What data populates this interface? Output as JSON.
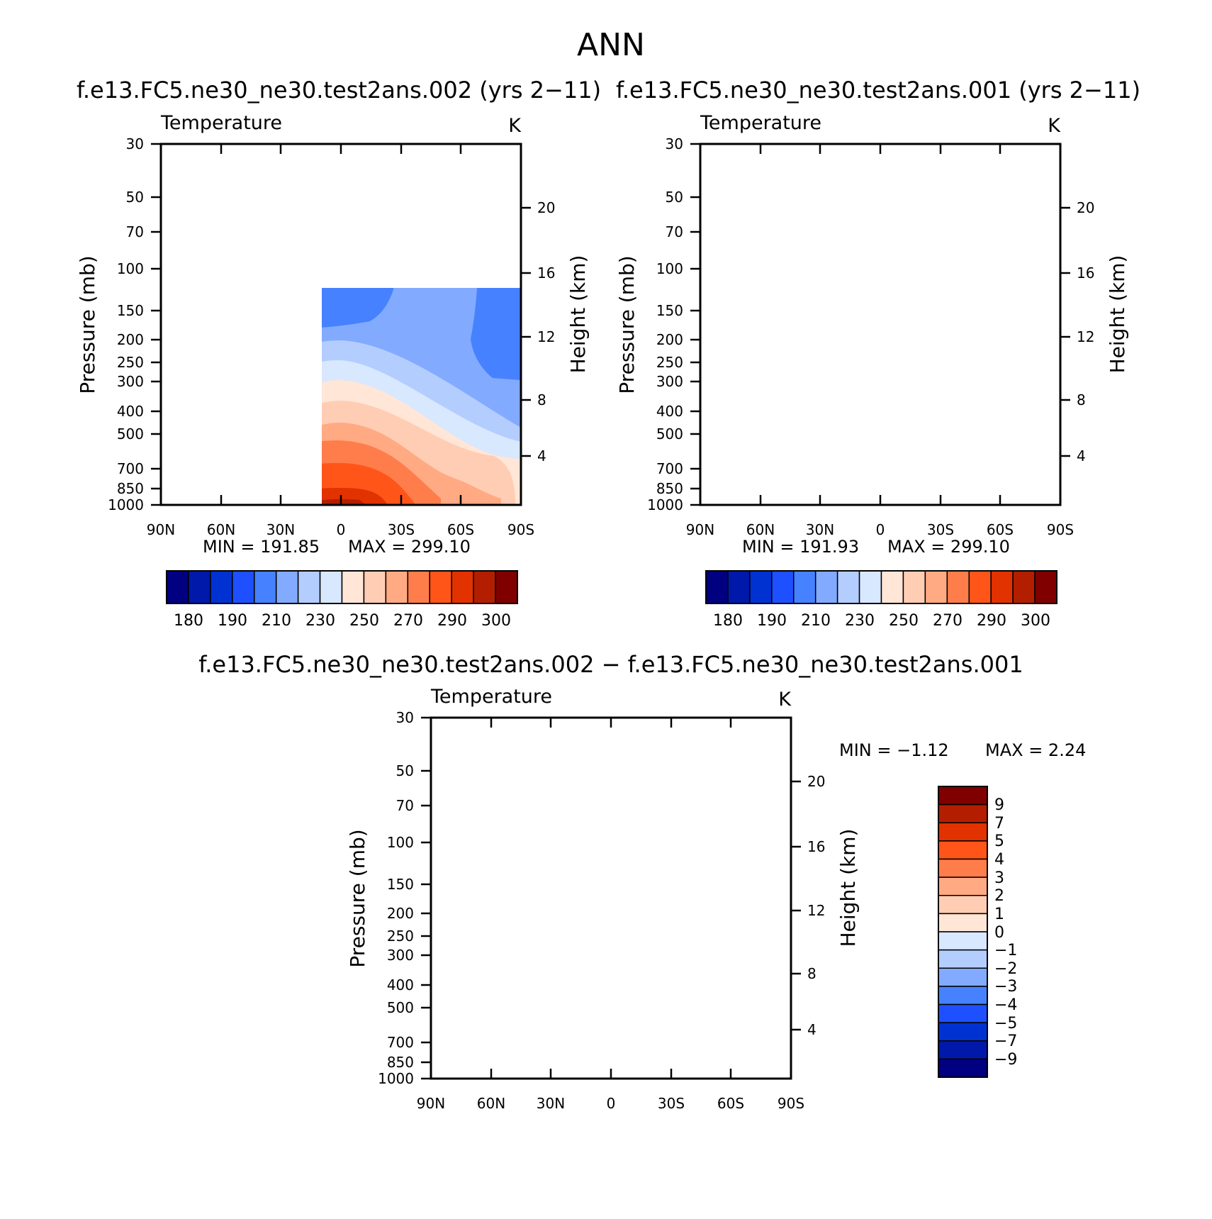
{
  "page_title": "ANN",
  "colors": {
    "temp_levels": [
      "#000080",
      "#0019aa",
      "#0032d2",
      "#1e50ff",
      "#4682ff",
      "#82aaff",
      "#b4cdff",
      "#d7e8ff",
      "#ffe6d7",
      "#ffcdb4",
      "#ffaa82",
      "#ff7d4b",
      "#ff5519",
      "#e13200",
      "#b41e00",
      "#800000"
    ],
    "diff_levels": [
      "#000080",
      "#0019aa",
      "#0032d2",
      "#1e50ff",
      "#4682ff",
      "#82aaff",
      "#b4cdff",
      "#d7e8ff",
      "#ffe6d7",
      "#ffcdb4",
      "#ffaa82",
      "#ff7d4b",
      "#ff5519",
      "#e13200",
      "#b41e00",
      "#800000"
    ]
  },
  "chart_data": [
    {
      "type": "contour",
      "panel": "top-left",
      "title": "f.e13.FC5.ne30_ne30.test2ans.002 (yrs 2−11)",
      "subtitle_left": "Temperature",
      "units": "K",
      "ylabel": "Pressure (mb)",
      "ylabel2": "Height (km)",
      "x_ticks": [
        "90N",
        "60N",
        "30N",
        "0",
        "30S",
        "60S",
        "90S"
      ],
      "y_ticks": [
        "30",
        "50",
        "70",
        "100",
        "150",
        "200",
        "250",
        "300",
        "400",
        "500",
        "700",
        "850",
        "1000"
      ],
      "y2_ticks": [
        "4",
        "8",
        "12",
        "16",
        "20"
      ],
      "min_label": "MIN = 191.85",
      "max_label": "MAX = 299.10",
      "min": 191.85,
      "max": 299.1,
      "colorbar_labels": [
        "180",
        "190",
        "210",
        "230",
        "250",
        "270",
        "290",
        "300"
      ]
    },
    {
      "type": "contour",
      "panel": "top-right",
      "title": "f.e13.FC5.ne30_ne30.test2ans.001 (yrs 2−11)",
      "subtitle_left": "Temperature",
      "units": "K",
      "ylabel": "Pressure (mb)",
      "ylabel2": "Height (km)",
      "x_ticks": [
        "90N",
        "60N",
        "30N",
        "0",
        "30S",
        "60S",
        "90S"
      ],
      "y_ticks": [
        "30",
        "50",
        "70",
        "100",
        "150",
        "200",
        "250",
        "300",
        "400",
        "500",
        "700",
        "850",
        "1000"
      ],
      "y2_ticks": [
        "4",
        "8",
        "12",
        "16",
        "20"
      ],
      "min_label": "MIN = 191.93",
      "max_label": "MAX = 299.10",
      "min": 191.93,
      "max": 299.1,
      "colorbar_labels": [
        "180",
        "190",
        "210",
        "230",
        "250",
        "270",
        "290",
        "300"
      ]
    },
    {
      "type": "contour",
      "panel": "bottom",
      "title": "f.e13.FC5.ne30_ne30.test2ans.002 − f.e13.FC5.ne30_ne30.test2ans.001",
      "subtitle_left": "Temperature",
      "units": "K",
      "ylabel": "Pressure (mb)",
      "ylabel2": "Height (km)",
      "x_ticks": [
        "90N",
        "60N",
        "30N",
        "0",
        "30S",
        "60S",
        "90S"
      ],
      "y_ticks": [
        "30",
        "50",
        "70",
        "100",
        "150",
        "200",
        "250",
        "300",
        "400",
        "500",
        "700",
        "850",
        "1000"
      ],
      "y2_ticks": [
        "4",
        "8",
        "12",
        "16",
        "20"
      ],
      "min_label": "MIN = −1.12",
      "max_label": "MAX = 2.24",
      "min": -1.12,
      "max": 2.24,
      "colorbar_labels": [
        "9",
        "7",
        "5",
        "4",
        "3",
        "2",
        "1",
        "0",
        "−1",
        "−2",
        "−3",
        "−4",
        "−5",
        "−7",
        "−9"
      ]
    }
  ]
}
